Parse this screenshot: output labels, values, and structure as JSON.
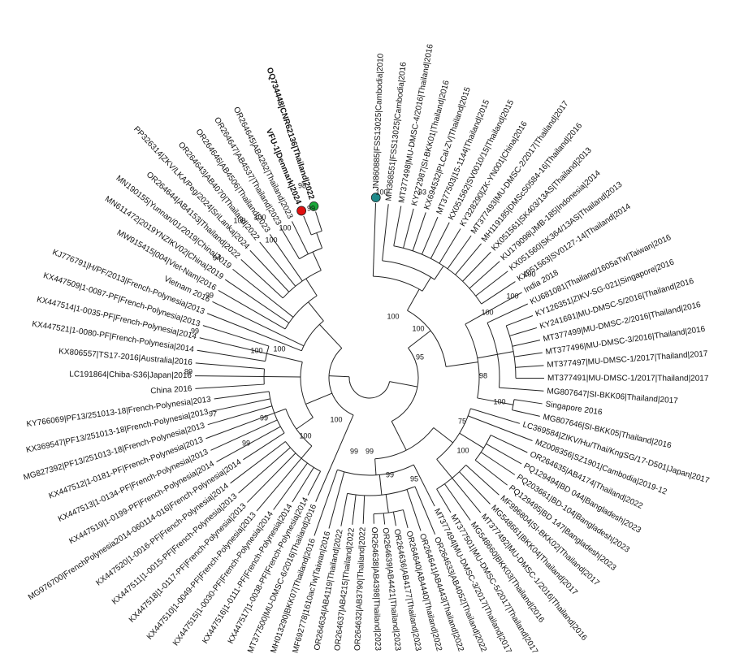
{
  "leaves": [
    {
      "label": "JN860885|FSS13025|Cambodia|2010",
      "marker_color": "#1f8a8a"
    },
    {
      "label": "MH368551|FSS13025|Cambodia|2016"
    },
    {
      "label": "MT377498|MU-DMSC-4/2016|Thailand|2016"
    },
    {
      "label": "KY272987|SI-BKK01|Thailand|2016"
    },
    {
      "label": "KX694532|PLCal-ZV|Thailand|2015"
    },
    {
      "label": "MT377503|15-1144|Thailand|2015"
    },
    {
      "label": "KX051562|SV0010/15|Thailand|2015"
    },
    {
      "label": "KY328290|ZK-YN001|China|2016"
    },
    {
      "label": "MT377493|MU-DMSC-2/2017|Thailand|2017"
    },
    {
      "label": "MH119185|DMScS0584-16|Thailand|2016"
    },
    {
      "label": "KX051561|SK403/13AS|Thailand|2013"
    },
    {
      "label": "KU179098|JMB-185|Indonesia|2014"
    },
    {
      "label": "KX051560|SK364/13AS|Thailand|2013"
    },
    {
      "label": "KX051563|SV0127-14|Thailand|2014"
    },
    {
      "label": "India 2018"
    },
    {
      "label": "KU681081|Thailand/1605aTw|Taiwan|2016"
    },
    {
      "label": "KY126351|ZIKV-SG-021|Singapore|2016"
    },
    {
      "label": "KY241691|MU-DMSC-5/2016|Thailand|2016"
    },
    {
      "label": "MT377499|MU-DMSC-2/2016|Thailand|2016"
    },
    {
      "label": "MT377496|MU-DMSC-3/2016|Thailand|2016"
    },
    {
      "label": "MT377497|MU-DMSC-1/2017|Thailand|2017"
    },
    {
      "label": "MT377491|MU-DMSC-1/2017|Thailand|2017"
    },
    {
      "label": "MG807647|SI-BKK06|Thailand|2017"
    },
    {
      "label": "Singapore 2016"
    },
    {
      "label": "MG807646|SI-BKK05|Thailand|2016"
    },
    {
      "label": "LC369584|ZIKV/Hu/Thai/KngSG/17-D501|Japan|2017"
    },
    {
      "label": "MZ008356|SZ1901|Cambodia|2019-12"
    },
    {
      "label": "OR264635|AB4174|Thailand|2022"
    },
    {
      "label": "PQ129494|BD 044|Bangladesh|2023"
    },
    {
      "label": "PQ203661|BD-104|Bangladesh|2023"
    },
    {
      "label": "PQ129495|BD 147|Bangladesh|2023"
    },
    {
      "label": "MF996804|SI-BKK02|Thailand|2017"
    },
    {
      "label": "MG548661|BKK04|Thailand|2017"
    },
    {
      "label": "MT377492|MU-DMSC-1/2016|Thailand|2016"
    },
    {
      "label": "MG548660|BKK03|Thailand|2016"
    },
    {
      "label": "MT377501|MU-DMSC-5/2017|Thailand|2017"
    },
    {
      "label": "MT377494|MU-DMSC-3/2017|Thailand|2017"
    },
    {
      "label": "OR264633|AB4052|Thailand|2022"
    },
    {
      "label": "OR264641|AB4443|Thailand|2022"
    },
    {
      "label": "OR264640|AB4440|Thailand|2022"
    },
    {
      "label": "OR264636|AB4177|Thailand|2023"
    },
    {
      "label": "OR264639|AB4421|Thailand|2023"
    },
    {
      "label": "OR264638|AB4398|Thailand|2023"
    },
    {
      "label": "OR264632|AB3790|Thailand|2022"
    },
    {
      "label": "OR264637|AB4215|Thailand|2022"
    },
    {
      "label": "OR264634|AB4119|Thailand|2022"
    },
    {
      "label": "MF692778|1610acTw|Taiwan|2016"
    },
    {
      "label": "MH013290|BKK07|Thailand|2016"
    },
    {
      "label": "MT377500|MU-DMSC-6/2016|Thailand|2016"
    },
    {
      "label": "KX447517|1-0038-PF|French-Polynesia|2014"
    },
    {
      "label": "KX447516|1-0111-PF|French-Polynesia|2014"
    },
    {
      "label": "KX447515|1-0030-PF|French-Polynesia|2014"
    },
    {
      "label": "KX447510|1-0049-PF|French-Polynesia|2013"
    },
    {
      "label": "KX447518|1-0117-PF|French-Polynesia|2013"
    },
    {
      "label": "KX447511|1-0015-PF|French-Polynesia|2013"
    },
    {
      "label": "KX447520|1-0016-PF|French-Polynesia|2014"
    },
    {
      "label": "MG976700|FrenchPolynesia2014-060114-016|French-Polynesia|2014"
    },
    {
      "label": "KX447519|1-0199-PF|French-Polynesia|2014"
    },
    {
      "label": "KX447513|1-0134-PF|French-Polynesia|2013"
    },
    {
      "label": "KX447512|1-0181-PF|French-Polynesia|2013"
    },
    {
      "label": "MG827392|PF13/251013-18|French-Polynesia|2013"
    },
    {
      "label": "KX369547|PF13/251013-18|French-Polynesia|2013"
    },
    {
      "label": "KY766069|PF13/251013-18|French-Polynesia|2013"
    },
    {
      "label": "China 2016"
    },
    {
      "label": "LC191864|Chiba-S36|Japan|2016"
    },
    {
      "label": "KX806557|TS17-2016|Australia|2016"
    },
    {
      "label": "KX447521|1-0080-PF|French-Polynesia|2014"
    },
    {
      "label": "KX447514|1-0035-PF|French-Polynesia|2014"
    },
    {
      "label": "KX447509|1-0087-PF|French-Polynesia|2013"
    },
    {
      "label": "KJ776791|H/PF/2013|French-Polynesia|2013"
    },
    {
      "label": "Vietnam 2016"
    },
    {
      "label": "MW915415|004|Viet-Nam|2016"
    },
    {
      "label": "MN611472|2019YNZIKV02|China|2019"
    },
    {
      "label": "MN190155|Yunnan/01/2019|China|2019"
    },
    {
      "label": "OR264644|AB4153|Thailand|2022"
    },
    {
      "label": "PP326314|ZKV/LKA/Peg/2024|SriLanka|2024"
    },
    {
      "label": "OR264643|AB4070|Thailand|2022"
    },
    {
      "label": "OR264646|AB4506|Thailand|2023"
    },
    {
      "label": "OR264647|AB4537|Thailand|2023"
    },
    {
      "label": "OR264645|AB4262|Thailand|2023"
    },
    {
      "label": "VFU-1|Denmark|2024",
      "marker_color": "#e01010",
      "bold": true
    },
    {
      "label": "OQ734448|CNR62136|Thailand|2022",
      "marker_color": "#1aa83a",
      "bold": true
    }
  ],
  "bootstrap_values": [
    98,
    99,
    100,
    100,
    100,
    100,
    94,
    99,
    99,
    100,
    100,
    99,
    97,
    99,
    99,
    100,
    100,
    99,
    99,
    99,
    95,
    100,
    75,
    100,
    98,
    95,
    100,
    100,
    100,
    100,
    100,
    93,
    100
  ]
}
